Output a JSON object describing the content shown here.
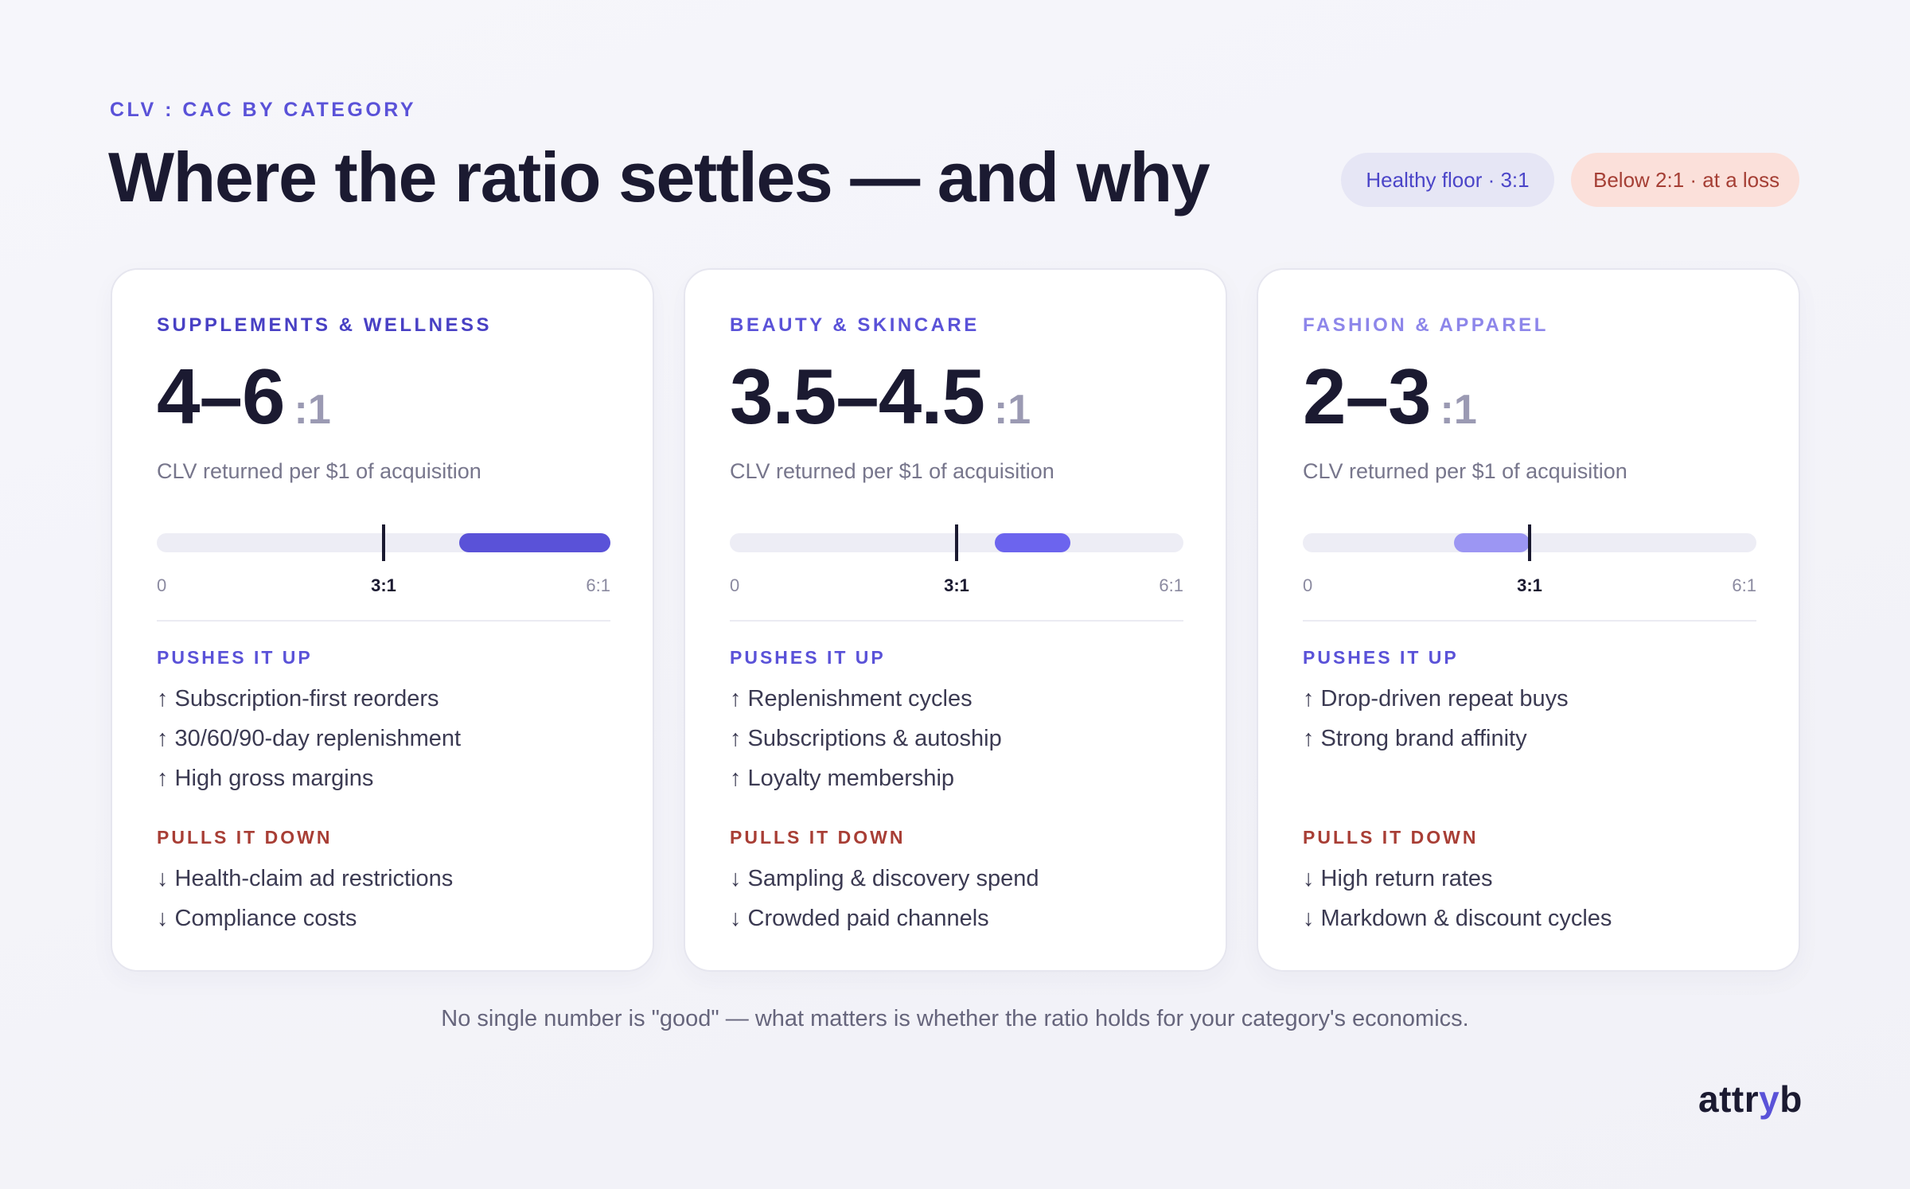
{
  "eyebrow": "CLV : CAC BY CATEGORY",
  "title": "Where the ratio settles — and why",
  "legend": {
    "healthy": "Healthy floor · 3:1",
    "loss": "Below 2:1 · at a loss"
  },
  "scale_labels": {
    "min": "0",
    "mid": "3:1",
    "max": "6:1"
  },
  "colors": {
    "accent": "#5a52d8",
    "accent_mid": "#6c64ee",
    "accent_light": "#9c96f3",
    "loss_text": "#a83e35",
    "loss_bg": "#fbe0da"
  },
  "cards": [
    {
      "category": "SUPPLEMENTS & WELLNESS",
      "ratio": "4–6",
      "unit": ":1",
      "subtext": "CLV returned per $1 of acquisition",
      "push_label": "PUSHES IT UP",
      "push": [
        "↑ Subscription-first reorders",
        "↑ 30/60/90-day replenishment",
        "↑ High gross margins"
      ],
      "pull_label": "PULLS IT DOWN",
      "pull": [
        "↓ Health-claim ad restrictions",
        "↓ Compliance costs"
      ]
    },
    {
      "category": "BEAUTY & SKINCARE",
      "ratio": "3.5–4.5",
      "unit": ":1",
      "subtext": "CLV returned per $1 of acquisition",
      "push_label": "PUSHES IT UP",
      "push": [
        "↑ Replenishment cycles",
        "↑ Subscriptions & autoship",
        "↑ Loyalty membership"
      ],
      "pull_label": "PULLS IT DOWN",
      "pull": [
        "↓ Sampling & discovery spend",
        "↓ Crowded paid channels"
      ]
    },
    {
      "category": "FASHION & APPAREL",
      "ratio": "2–3",
      "unit": ":1",
      "subtext": "CLV returned per $1 of acquisition",
      "push_label": "PUSHES IT UP",
      "push": [
        "↑ Drop-driven repeat buys",
        "↑ Strong brand affinity"
      ],
      "pull_label": "PULLS IT DOWN",
      "pull": [
        "↓ High return rates",
        "↓ Markdown & discount cycles"
      ]
    }
  ],
  "chart_data": {
    "type": "bar",
    "categories": [
      "SUPPLEMENTS & WELLNESS",
      "BEAUTY & SKINCARE",
      "FASHION & APPAREL"
    ],
    "ranges": [
      [
        4,
        6
      ],
      [
        3.5,
        4.5
      ],
      [
        2,
        3
      ]
    ],
    "range_colors": [
      "#5a52d8",
      "#6c64ee",
      "#9c96f3"
    ],
    "xlim": [
      0,
      6
    ],
    "reference_line": 3,
    "tick_labels": [
      "0",
      "3:1",
      "6:1"
    ]
  },
  "footer": "No single number is \"good\" — what matters is whether the ratio holds for your category's economics.",
  "brand": {
    "pre": "attr",
    "accent": "y",
    "post": "b"
  }
}
